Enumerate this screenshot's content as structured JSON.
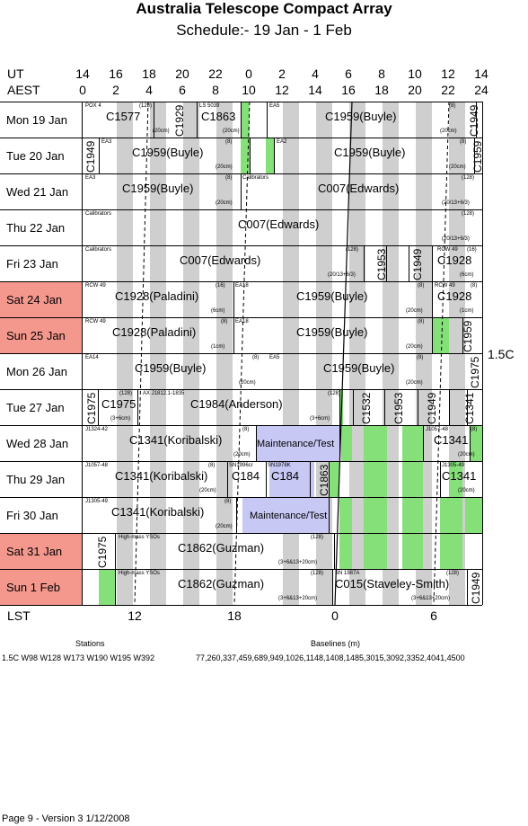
{
  "title": "Australia Telescope Compact Array",
  "subtitle": "Schedule:- 19 Jan - 1  Feb",
  "ut_label": "UT",
  "aest_label": "AEST",
  "lst_label": "LST",
  "ut_ticks": [
    "14",
    "16",
    "18",
    "20",
    "22",
    "0",
    "2",
    "4",
    "6",
    "8",
    "10",
    "12",
    "14"
  ],
  "aest_ticks": [
    "0",
    "2",
    "4",
    "6",
    "8",
    "10",
    "12",
    "14",
    "16",
    "18",
    "20",
    "22",
    "24"
  ],
  "lst_ticks": [
    "12",
    "18",
    "0",
    "6"
  ],
  "array_config": "1.5C",
  "days": [
    {
      "label": "Mon   19 Jan",
      "weekend": false,
      "projects": [
        {
          "t": "C1577"
        },
        {
          "t": "C1929"
        },
        {
          "t": "C1863"
        },
        {
          "t": "C1959(Buyle)"
        },
        {
          "t": "C1949"
        }
      ],
      "notes": [
        "POX 4",
        "(128)",
        "(20cm)",
        "LS 5039",
        "(20cm)",
        "EA5",
        "(8)",
        "(20cm)"
      ]
    },
    {
      "label": "Tue   20 Jan",
      "weekend": false,
      "projects": [
        {
          "t": "C1949"
        },
        {
          "t": "C1959(Buyle)"
        },
        {
          "t": "C1959(Buyle)"
        },
        {
          "t": "C1959"
        }
      ],
      "notes": [
        "EA3",
        "(8)",
        "(20cm)",
        "EA2",
        "(8)",
        "(20cm)"
      ]
    },
    {
      "label": "Wed   21 Jan",
      "weekend": false,
      "projects": [
        {
          "t": "C1959(Buyle)"
        },
        {
          "t": "C007(Edwards)"
        }
      ],
      "notes": [
        "EA3",
        "(8)",
        "(20cm)",
        "Calibrators",
        "(128)",
        "(20/13+6/3)"
      ]
    },
    {
      "label": "Thu   22 Jan",
      "weekend": false,
      "projects": [
        {
          "t": "C007(Edwards)"
        }
      ],
      "notes": [
        "Calibrators",
        "(128)",
        "(20/13+6/3)"
      ]
    },
    {
      "label": "Fri   23 Jan",
      "weekend": false,
      "projects": [
        {
          "t": "C007(Edwards)"
        },
        {
          "t": "C1953"
        },
        {
          "t": "C1949"
        },
        {
          "t": "C1928"
        }
      ],
      "notes": [
        "Calibrators",
        "(128)",
        "(20/13+6/3)",
        "RCW 49",
        "(16)",
        "(6cm)"
      ]
    },
    {
      "label": "Sat   24 Jan",
      "weekend": true,
      "projects": [
        {
          "t": "C1928(Paladini)"
        },
        {
          "t": "C1959(Buyle)"
        },
        {
          "t": "C1928"
        }
      ],
      "notes": [
        "RCW 49",
        "(16)",
        "(6cm)",
        "EA18",
        "(8)",
        "(20cm)",
        "RCW 49",
        "(8)",
        "(1cm)"
      ]
    },
    {
      "label": "Sun   25 Jan",
      "weekend": true,
      "projects": [
        {
          "t": "C1928(Paladini)"
        },
        {
          "t": "C1959(Buyle)"
        },
        {
          "t": "C1959"
        }
      ],
      "notes": [
        "RCW 49",
        "(8)",
        "(1cm)",
        "EA18",
        "(8)",
        "(20cm)"
      ]
    },
    {
      "label": "Mon   26 Jan",
      "weekend": false,
      "projects": [
        {
          "t": "C1959(Buyle)"
        },
        {
          "t": "C1959(Buyle)"
        },
        {
          "t": "C1975"
        }
      ],
      "notes": [
        "EA14",
        "(8)",
        "(20cm)",
        "EA5",
        "(8)",
        "(20cm)"
      ]
    },
    {
      "label": "Tue   27 Jan",
      "weekend": false,
      "projects": [
        {
          "t": "C1975"
        },
        {
          "t": "C1975"
        },
        {
          "t": "C1984(Anderson)"
        },
        {
          "t": "C1532"
        },
        {
          "t": "C1953"
        },
        {
          "t": "C1949"
        },
        {
          "t": "C1341"
        }
      ],
      "notes": [
        "(128)",
        "(3+6cm)",
        "AX J1812.1-1835",
        "(128)",
        "(3+6cm)"
      ]
    },
    {
      "label": "Wed   28 Jan",
      "weekend": false,
      "projects": [
        {
          "t": "C1341(Koribalski)"
        },
        {
          "t": "Maintenance/Test"
        },
        {
          "t": "C1341"
        }
      ],
      "notes": [
        "J1324-42",
        "(8)",
        "(20cm)",
        "J1057-48",
        "(8)",
        "(20cm)"
      ]
    },
    {
      "label": "Thu   29 Jan",
      "weekend": false,
      "projects": [
        {
          "t": "C1341(Koribalski)"
        },
        {
          "t": "C184"
        },
        {
          "t": "C184"
        },
        {
          "t": "C1863"
        },
        {
          "t": "C1341"
        }
      ],
      "notes": [
        "J1057-48",
        "(8)",
        "(20cm)",
        "SN1996cr",
        "SN1978K",
        "J1305-49",
        "(20cm)"
      ]
    },
    {
      "label": "Fri   30 Jan",
      "weekend": false,
      "projects": [
        {
          "t": "C1341(Koribalski)"
        },
        {
          "t": "Maintenance/Test"
        }
      ],
      "notes": [
        "J1305-49",
        "(8)",
        "(20cm)"
      ]
    },
    {
      "label": "Sat   31 Jan",
      "weekend": true,
      "projects": [
        {
          "t": "C1975"
        },
        {
          "t": "C1862(Guzman)"
        }
      ],
      "notes": [
        "High-mass YSOs",
        "(128)",
        "(3+6&13+20cm)"
      ]
    },
    {
      "label": "Sun   1  Feb",
      "weekend": true,
      "projects": [
        {
          "t": "C1862(Guzman)"
        },
        {
          "t": "C015(Staveley-Smith)"
        },
        {
          "t": "C1949"
        }
      ],
      "notes": [
        "High-mass YSOs",
        "(128)",
        "(3+6&13+20cm)",
        "SN 1987A",
        "(128)",
        "(3+6&13+20cm)"
      ]
    }
  ],
  "stations_label": "Stations",
  "baselines_label": "Baselines (m)",
  "stations_line": "1.5C    W98 W128 W173 W190 W195 W392",
  "baselines_line": "77,260,337,459,689,949,1026,1148,1408,1485,3015,3092,3352,4041,4500",
  "footer": "Page 9 - Version 3  1/12/2008",
  "colors": {
    "weekend": "#f4988e",
    "shade": "#cfcfcf",
    "green": "#86e07a",
    "maintenance": "#c8c8f5"
  }
}
